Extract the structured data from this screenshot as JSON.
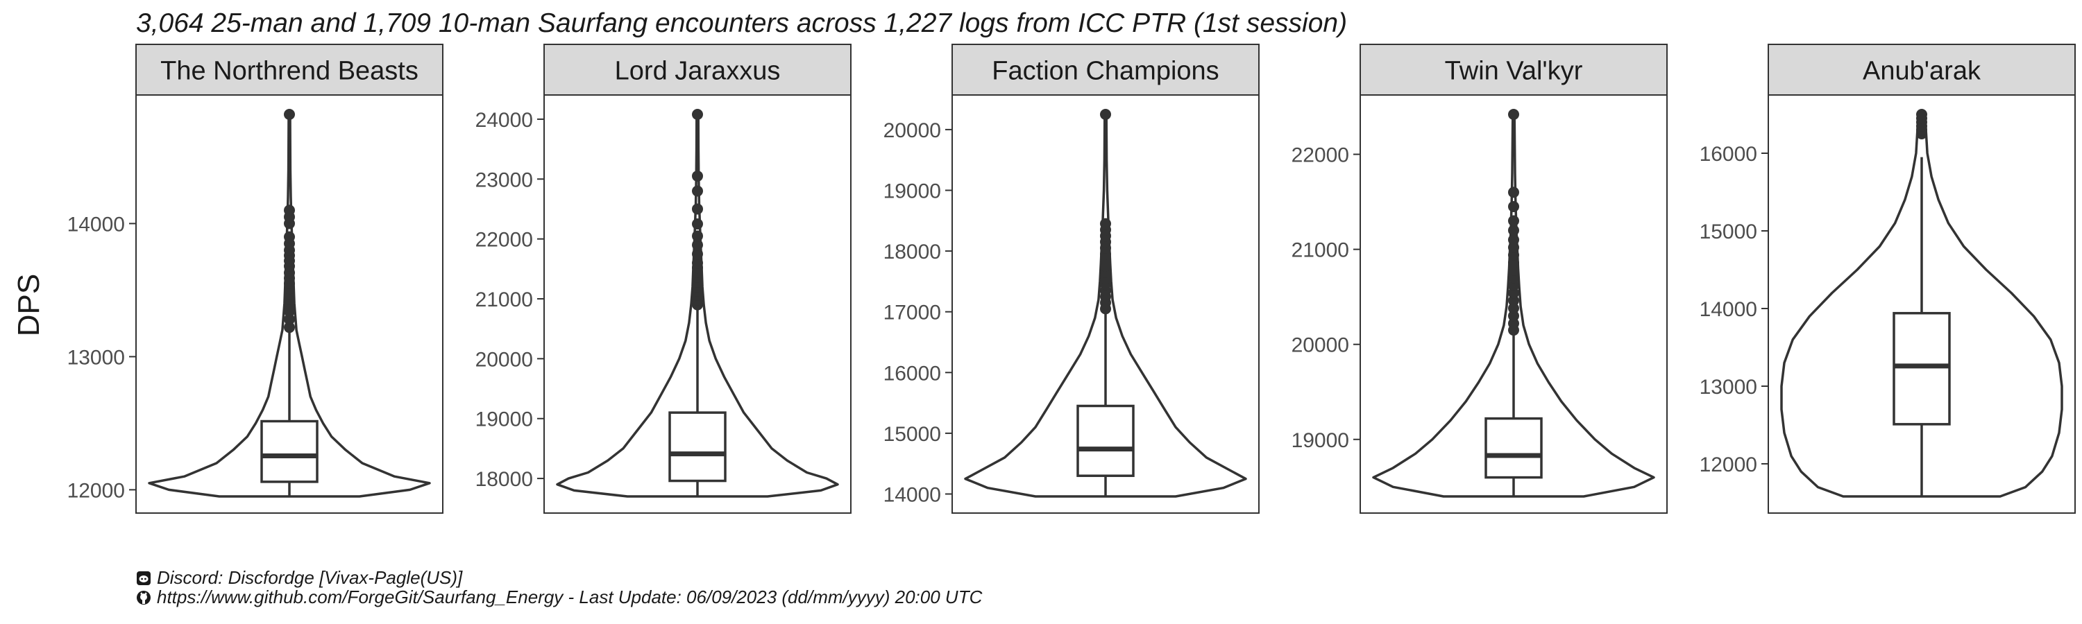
{
  "title": "3,064 25-man and 1,709 10-man Saurfang encounters across 1,227 logs from ICC PTR (1st session)",
  "caption": {
    "discord_icon": "discord-icon",
    "discord_text": "Discord: Discfordge [Vivax-Pagle(US)]",
    "github_icon": "github-icon",
    "github_text": "https://www.github.com/ForgeGit/Saurfang_Energy - Last Update: 06/09/2023 (dd/mm/yyyy) 20:00 UTC"
  },
  "colors": {
    "strip_bg": "#d9d9d9",
    "line": "#333333",
    "panel_border": "#333333"
  },
  "chart_data": {
    "type": "violin+box",
    "ylabel": "DPS",
    "xlabel": "",
    "grid": false,
    "legend": "none",
    "panels": [
      {
        "name": "The Northrend Beasts",
        "ylim": [
          11950,
          14820
        ],
        "yticks": [
          12000,
          13000,
          14000
        ],
        "box": {
          "q1": 12060,
          "median": 12255,
          "q3": 12515,
          "lower": 11950,
          "upper": 13200
        },
        "violin": [
          [
            11950,
            0.5
          ],
          [
            12000,
            0.86
          ],
          [
            12050,
            1.0
          ],
          [
            12100,
            0.75
          ],
          [
            12200,
            0.52
          ],
          [
            12300,
            0.4
          ],
          [
            12400,
            0.3
          ],
          [
            12500,
            0.24
          ],
          [
            12600,
            0.19
          ],
          [
            12700,
            0.15
          ],
          [
            12800,
            0.13
          ],
          [
            12900,
            0.11
          ],
          [
            13000,
            0.09
          ],
          [
            13100,
            0.07
          ],
          [
            13200,
            0.05
          ],
          [
            13400,
            0.035
          ],
          [
            13600,
            0.028
          ],
          [
            13800,
            0.022
          ],
          [
            14000,
            0.015
          ],
          [
            14200,
            0.01
          ],
          [
            14400,
            0.007
          ],
          [
            14600,
            0.006
          ],
          [
            14820,
            0.005
          ]
        ],
        "outliers": [
          13220,
          13280,
          13340,
          13390,
          13430,
          13470,
          13510,
          13550,
          13590,
          13630,
          13680,
          13720,
          13760,
          13800,
          13850,
          13900,
          14000,
          14050,
          14100,
          14820
        ]
      },
      {
        "name": "Lord Jaraxxus",
        "ylim": [
          17700,
          24080
        ],
        "yticks": [
          18000,
          19000,
          20000,
          21000,
          22000,
          23000,
          24000
        ],
        "box": {
          "q1": 17960,
          "median": 18410,
          "q3": 19100,
          "lower": 17700,
          "upper": 20900
        },
        "violin": [
          [
            17700,
            0.5
          ],
          [
            17800,
            0.88
          ],
          [
            17900,
            1.0
          ],
          [
            18000,
            0.92
          ],
          [
            18100,
            0.78
          ],
          [
            18300,
            0.64
          ],
          [
            18500,
            0.53
          ],
          [
            18800,
            0.43
          ],
          [
            19100,
            0.33
          ],
          [
            19400,
            0.26
          ],
          [
            19700,
            0.19
          ],
          [
            20000,
            0.13
          ],
          [
            20300,
            0.085
          ],
          [
            20600,
            0.06
          ],
          [
            20900,
            0.045
          ],
          [
            21200,
            0.035
          ],
          [
            21500,
            0.03
          ],
          [
            21800,
            0.025
          ],
          [
            22200,
            0.018
          ],
          [
            22600,
            0.012
          ],
          [
            23000,
            0.009
          ],
          [
            23500,
            0.007
          ],
          [
            24080,
            0.006
          ]
        ],
        "outliers": [
          20900,
          20980,
          21060,
          21130,
          21200,
          21280,
          21360,
          21440,
          21520,
          21600,
          21750,
          21900,
          22050,
          22250,
          22500,
          22800,
          23050,
          24080
        ]
      },
      {
        "name": "Faction Champions",
        "ylim": [
          13960,
          20250
        ],
        "yticks": [
          14000,
          15000,
          16000,
          17000,
          18000,
          19000,
          20000
        ],
        "box": {
          "q1": 14300,
          "median": 14740,
          "q3": 15450,
          "lower": 13960,
          "upper": 17000
        },
        "violin": [
          [
            13960,
            0.5
          ],
          [
            14100,
            0.84
          ],
          [
            14250,
            1.0
          ],
          [
            14400,
            0.88
          ],
          [
            14600,
            0.72
          ],
          [
            14850,
            0.6
          ],
          [
            15100,
            0.5
          ],
          [
            15400,
            0.42
          ],
          [
            15700,
            0.34
          ],
          [
            16000,
            0.26
          ],
          [
            16300,
            0.18
          ],
          [
            16600,
            0.12
          ],
          [
            16900,
            0.075
          ],
          [
            17200,
            0.05
          ],
          [
            17500,
            0.04
          ],
          [
            17800,
            0.033
          ],
          [
            18100,
            0.027
          ],
          [
            18500,
            0.02
          ],
          [
            19000,
            0.012
          ],
          [
            19500,
            0.008
          ],
          [
            20250,
            0.006
          ]
        ],
        "outliers": [
          17050,
          17150,
          17250,
          17350,
          17450,
          17550,
          17650,
          17750,
          17850,
          17950,
          18050,
          18150,
          18250,
          18350,
          18450,
          20250
        ]
      },
      {
        "name": "Twin Val'kyr",
        "ylim": [
          18400,
          22420
        ],
        "yticks": [
          19000,
          20000,
          21000,
          22000
        ],
        "box": {
          "q1": 18600,
          "median": 18830,
          "q3": 19220,
          "lower": 18400,
          "upper": 20150
        },
        "violin": [
          [
            18400,
            0.5
          ],
          [
            18500,
            0.86
          ],
          [
            18600,
            1.0
          ],
          [
            18700,
            0.86
          ],
          [
            18850,
            0.7
          ],
          [
            19000,
            0.58
          ],
          [
            19200,
            0.45
          ],
          [
            19400,
            0.34
          ],
          [
            19600,
            0.25
          ],
          [
            19800,
            0.17
          ],
          [
            20000,
            0.11
          ],
          [
            20200,
            0.07
          ],
          [
            20400,
            0.05
          ],
          [
            20600,
            0.04
          ],
          [
            20800,
            0.032
          ],
          [
            21000,
            0.026
          ],
          [
            21200,
            0.02
          ],
          [
            21500,
            0.014
          ],
          [
            21800,
            0.01
          ],
          [
            22100,
            0.008
          ],
          [
            22420,
            0.006
          ]
        ],
        "outliers": [
          20150,
          20220,
          20300,
          20380,
          20460,
          20540,
          20620,
          20700,
          20780,
          20860,
          20940,
          21020,
          21100,
          21200,
          21300,
          21450,
          21600,
          22420
        ]
      },
      {
        "name": "Anub'arak",
        "ylim": [
          11580,
          16500
        ],
        "yticks": [
          12000,
          13000,
          14000,
          15000,
          16000
        ],
        "box": {
          "q1": 12510,
          "median": 13260,
          "q3": 13940,
          "lower": 11580,
          "upper": 15950
        },
        "violin": [
          [
            11580,
            0.56
          ],
          [
            11700,
            0.74
          ],
          [
            11900,
            0.86
          ],
          [
            12100,
            0.93
          ],
          [
            12400,
            0.98
          ],
          [
            12700,
            1.0
          ],
          [
            13000,
            1.0
          ],
          [
            13300,
            0.98
          ],
          [
            13600,
            0.92
          ],
          [
            13900,
            0.8
          ],
          [
            14200,
            0.64
          ],
          [
            14500,
            0.46
          ],
          [
            14800,
            0.3
          ],
          [
            15100,
            0.19
          ],
          [
            15400,
            0.12
          ],
          [
            15700,
            0.07
          ],
          [
            16000,
            0.04
          ],
          [
            16300,
            0.03
          ],
          [
            16500,
            0.025
          ]
        ],
        "outliers": [
          16250,
          16300,
          16350,
          16400,
          16450,
          16500
        ]
      }
    ]
  }
}
